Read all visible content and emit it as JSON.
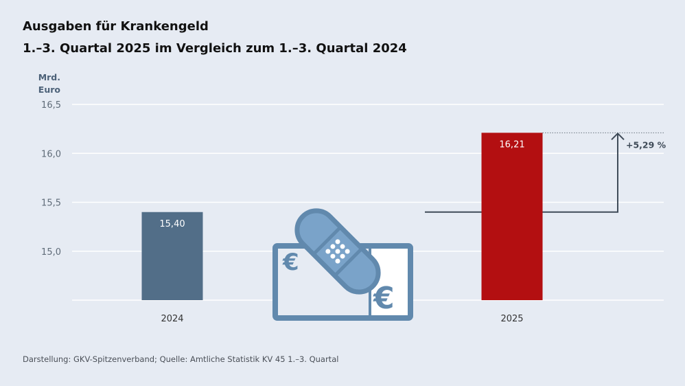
{
  "title": "Ausgaben für Krankengeld",
  "subtitle": "1.–3. Quartal 2025 im Vergleich zum 1.–3. Quartal 2024",
  "source": "Darstellung: GKV-Spitzenverband; Quelle: Amtliche Statistik KV 45 1.–3. Quartal",
  "icon": "bandaged-euro-banknote-icon",
  "chart_data": {
    "type": "bar",
    "ylabel_line1": "Mrd.",
    "ylabel_line2": "Euro",
    "categories": [
      "2024",
      "2025"
    ],
    "values": [
      15.4,
      16.21
    ],
    "value_labels": [
      "15,40",
      "16,21"
    ],
    "colors": [
      "#526e88",
      "#b30f11"
    ],
    "ylim": [
      14.5,
      16.5
    ],
    "yticks": [
      15.0,
      15.5,
      16.0,
      16.5
    ],
    "ytick_labels": [
      "15,0",
      "15,5",
      "16,0",
      "16,5"
    ],
    "grid": true,
    "annotation": "+5,29 %"
  }
}
